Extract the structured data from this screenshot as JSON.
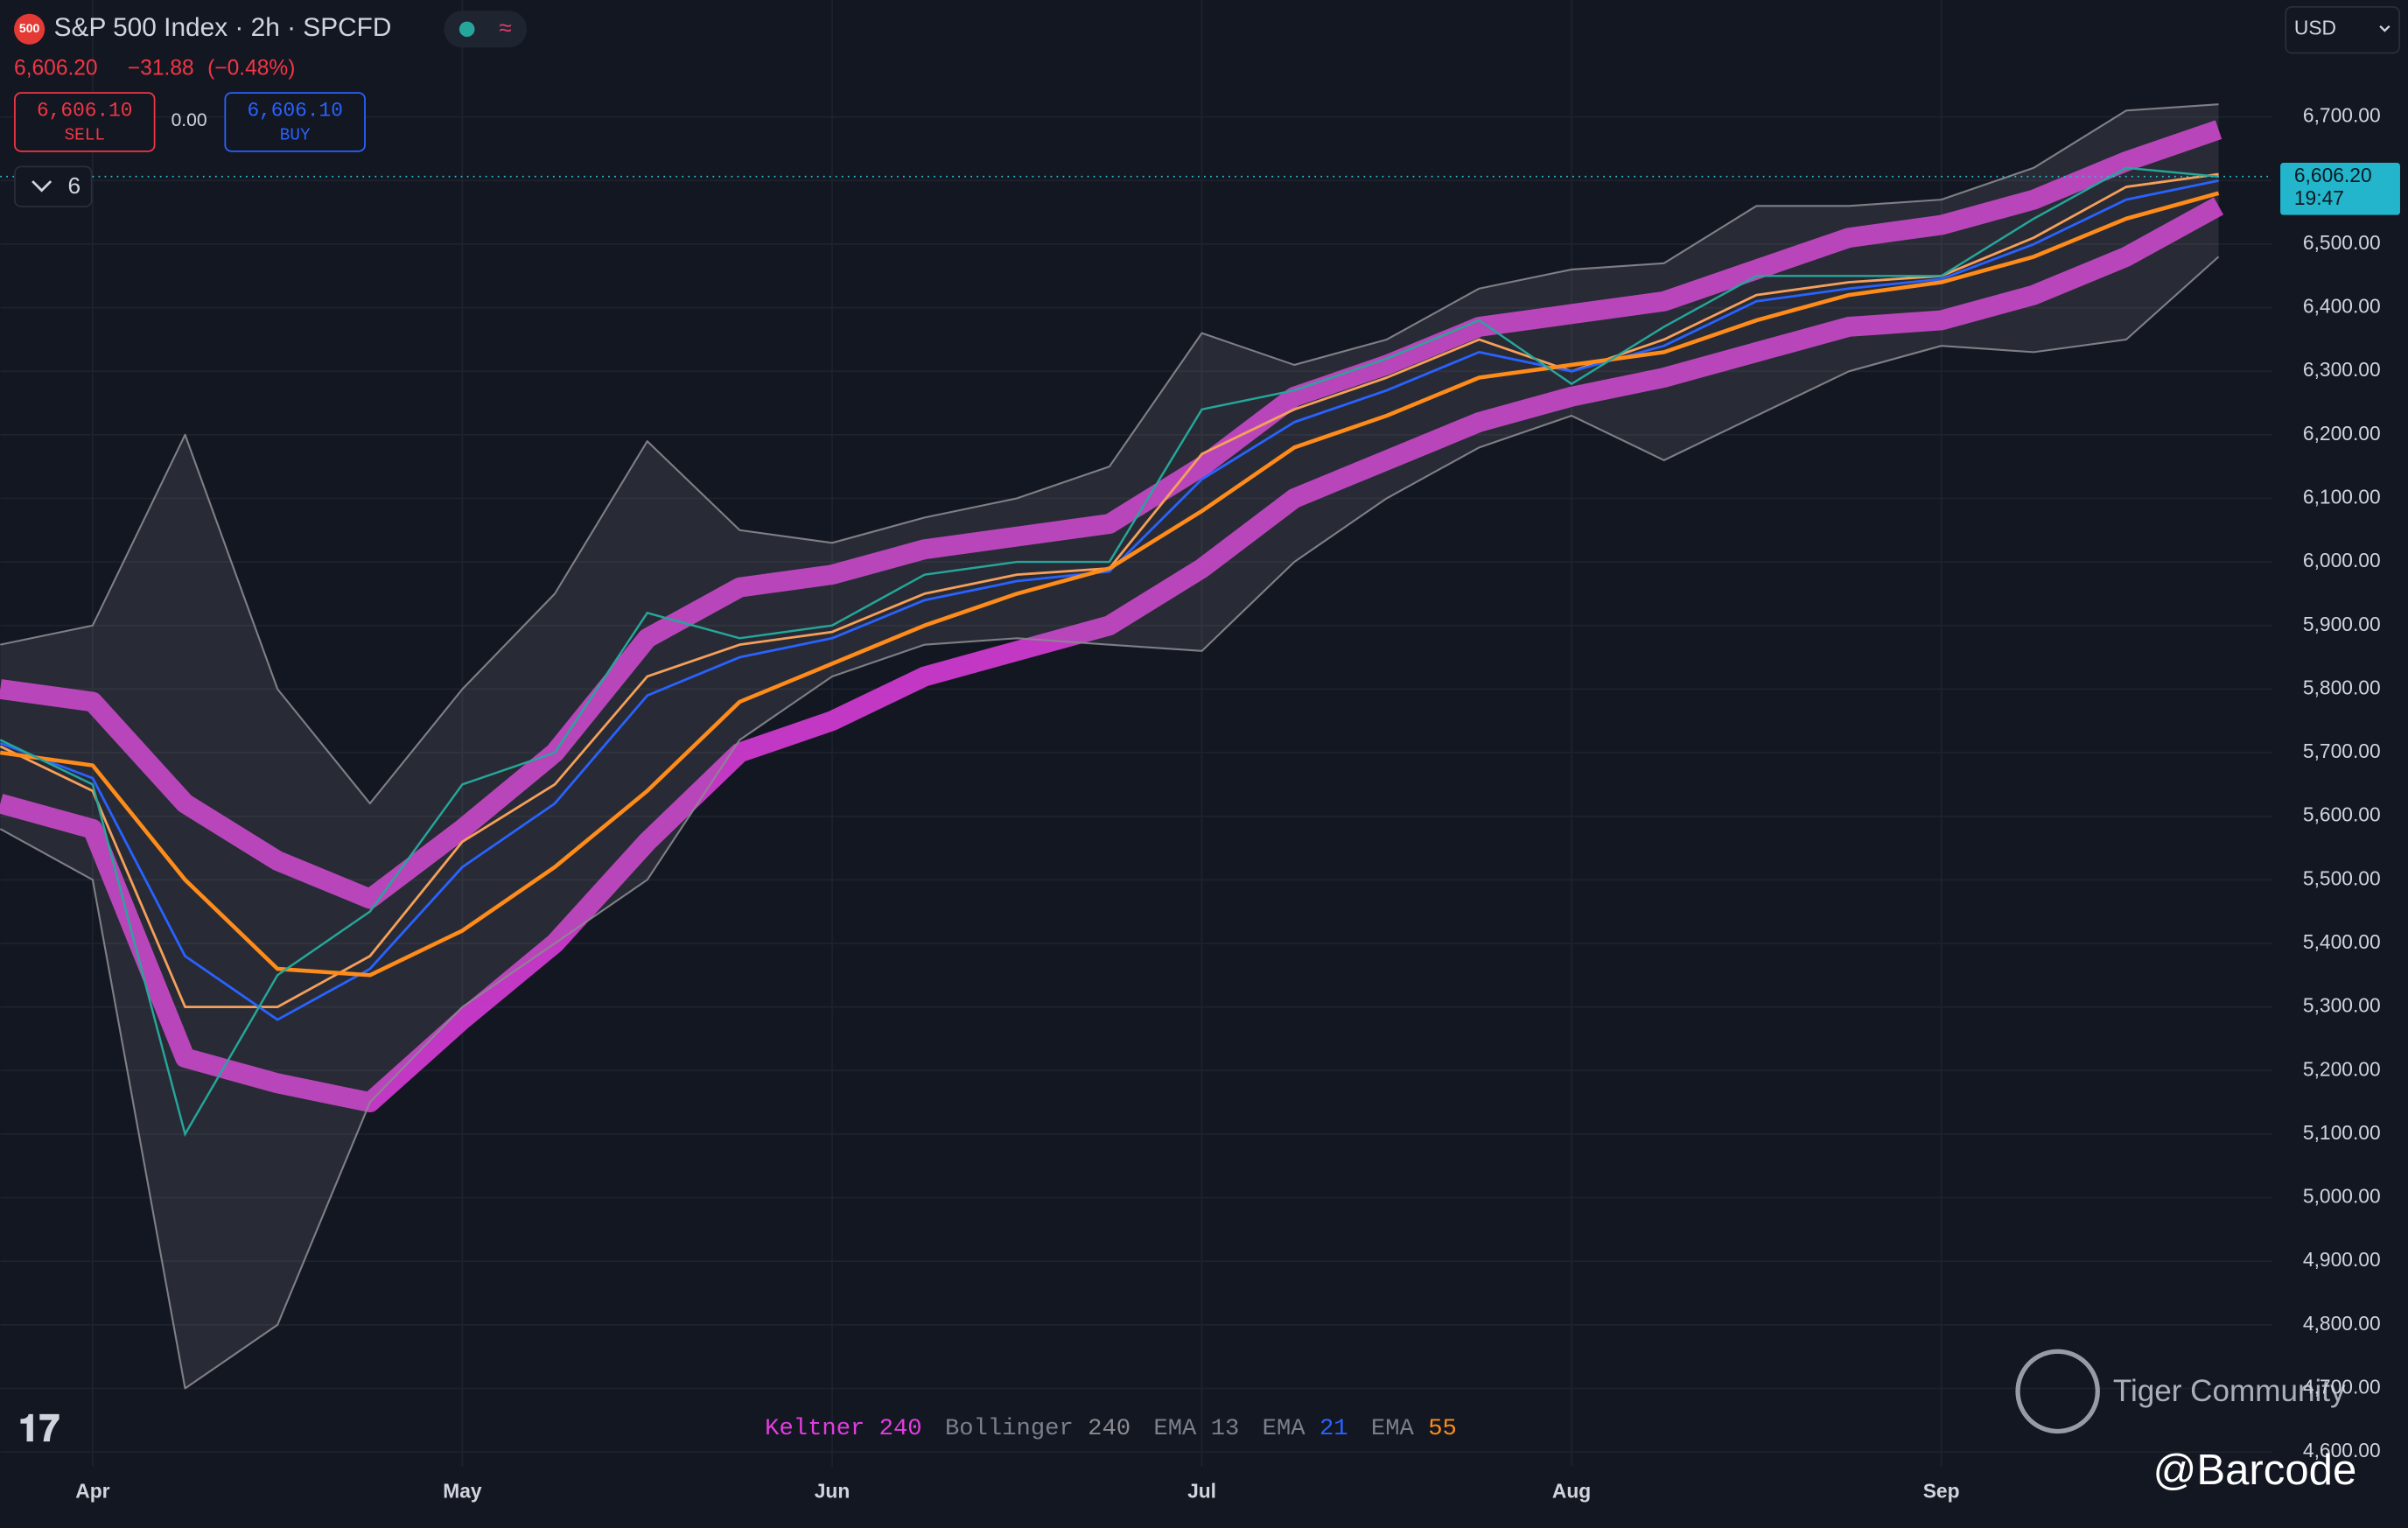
{
  "header": {
    "badge": "500",
    "symbol": "S&P 500 Index · 2h · SPCFD",
    "price": "6,606.20",
    "change": "−31.88",
    "change_pct": "(−0.48%)",
    "sell_price": "6,606.10",
    "sell_label": "SELL",
    "spread": "0.00",
    "buy_price": "6,606.10",
    "buy_label": "BUY",
    "indicator_count": "6",
    "currency": "USD",
    "countdown": "19:47",
    "watermark": "Tiger Community",
    "handle": "@Barcode"
  },
  "chart_data": {
    "type": "line",
    "categories": [
      null,
      "Apr",
      null,
      null,
      null,
      "May",
      null,
      null,
      null,
      "Jun",
      null,
      null,
      null,
      "Jul",
      null,
      null,
      null,
      "Aug",
      null,
      null,
      null,
      "Sep",
      null,
      null,
      null
    ],
    "ylim": [
      4577,
      6884
    ],
    "yticks": [
      {
        "value": 4600,
        "label": "4,600.00"
      },
      {
        "value": 4700,
        "label": "4,700.00"
      },
      {
        "value": 4800,
        "label": "4,800.00"
      },
      {
        "value": 4900,
        "label": "4,900.00"
      },
      {
        "value": 5000,
        "label": "5,000.00"
      },
      {
        "value": 5100,
        "label": "5,100.00"
      },
      {
        "value": 5200,
        "label": "5,200.00"
      },
      {
        "value": 5300,
        "label": "5,300.00"
      },
      {
        "value": 5400,
        "label": "5,400.00"
      },
      {
        "value": 5500,
        "label": "5,500.00"
      },
      {
        "value": 5600,
        "label": "5,600.00"
      },
      {
        "value": 5700,
        "label": "5,700.00"
      },
      {
        "value": 5800,
        "label": "5,800.00"
      },
      {
        "value": 5900,
        "label": "5,900.00"
      },
      {
        "value": 6000,
        "label": "6,000.00"
      },
      {
        "value": 6100,
        "label": "6,100.00"
      },
      {
        "value": 6200,
        "label": "6,200.00"
      },
      {
        "value": 6300,
        "label": "6,300.00"
      },
      {
        "value": 6400,
        "label": "6,400.00"
      },
      {
        "value": 6500,
        "label": "6,500.00"
      },
      {
        "value": 6600,
        "label": "6,600.00"
      },
      {
        "value": 6700,
        "label": "6,700.00"
      }
    ],
    "grid": true,
    "last_price": {
      "value": 6606.2,
      "label": "6,606.20"
    },
    "price": {
      "color": "#26a69a",
      "values": [
        5720,
        5650,
        5100,
        5350,
        5450,
        5650,
        5700,
        5920,
        5880,
        5900,
        5980,
        6000,
        6000,
        6240,
        6270,
        6320,
        6380,
        6280,
        6370,
        6450,
        6450,
        6450,
        6540,
        6620,
        6606.2
      ]
    },
    "bands": [
      {
        "name": "Keltner",
        "length": 240,
        "color": "#e23de0",
        "upper": [
          5800,
          5780,
          5620,
          5530,
          5470,
          5580,
          5700,
          5880,
          5960,
          5980,
          6020,
          6040,
          6060,
          6150,
          6260,
          6310,
          6370,
          6390,
          6410,
          6460,
          6510,
          6530,
          6570,
          6630,
          6680
        ],
        "lower": [
          5620,
          5580,
          5220,
          5180,
          5150,
          5280,
          5400,
          5560,
          5700,
          5750,
          5820,
          5860,
          5900,
          5990,
          6100,
          6160,
          6220,
          6260,
          6290,
          6330,
          6370,
          6380,
          6420,
          6480,
          6560
        ]
      },
      {
        "name": "Bollinger",
        "length": 240,
        "color": "#8a8a8f",
        "upper": [
          5870,
          5900,
          6200,
          5800,
          5620,
          5800,
          5950,
          6190,
          6050,
          6030,
          6070,
          6100,
          6150,
          6360,
          6310,
          6350,
          6430,
          6460,
          6470,
          6560,
          6560,
          6570,
          6620,
          6710,
          6720
        ],
        "lower": [
          5580,
          5500,
          4700,
          4800,
          5150,
          5300,
          5400,
          5500,
          5720,
          5820,
          5870,
          5880,
          5870,
          5860,
          6000,
          6100,
          6180,
          6230,
          6160,
          6230,
          6300,
          6340,
          6330,
          6350,
          6480
        ]
      }
    ],
    "series": [
      {
        "name": "EMA",
        "length": 13,
        "color": "#f5a05a",
        "values": [
          5710,
          5640,
          5300,
          5300,
          5380,
          5560,
          5650,
          5820,
          5870,
          5890,
          5950,
          5980,
          5990,
          6170,
          6240,
          6290,
          6350,
          6300,
          6350,
          6420,
          6440,
          6450,
          6510,
          6590,
          6610
        ]
      },
      {
        "name": "EMA",
        "length": 21,
        "color": "#2962ff",
        "values": [
          5715,
          5660,
          5380,
          5280,
          5360,
          5520,
          5620,
          5790,
          5850,
          5880,
          5940,
          5970,
          5985,
          6130,
          6220,
          6270,
          6330,
          6300,
          6340,
          6410,
          6430,
          6445,
          6500,
          6570,
          6600
        ]
      },
      {
        "name": "EMA",
        "length": 55,
        "color": "#ff8c1a",
        "values": [
          5700,
          5680,
          5500,
          5360,
          5350,
          5420,
          5520,
          5640,
          5780,
          5840,
          5900,
          5950,
          5990,
          6080,
          6180,
          6230,
          6290,
          6310,
          6330,
          6380,
          6420,
          6440,
          6480,
          6540,
          6580
        ]
      }
    ]
  }
}
